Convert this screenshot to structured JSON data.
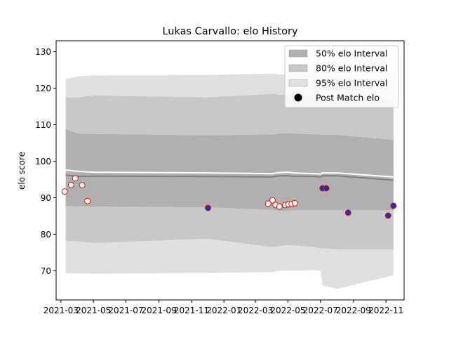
{
  "chart_data": {
    "type": "line",
    "title": "Lukas Carvallo: elo History",
    "xlabel": "",
    "ylabel": "elo score",
    "xlim": [
      "2021-02-20",
      "2022-12-05"
    ],
    "ylim": [
      62,
      133
    ],
    "x_ticks": [
      "2021-03",
      "2021-05",
      "2021-07",
      "2021-09",
      "2021-11",
      "2022-01",
      "2022-03",
      "2022-05",
      "2022-07",
      "2022-09",
      "2022-11"
    ],
    "y_ticks": [
      70,
      80,
      90,
      100,
      110,
      120,
      130
    ],
    "grid": false,
    "legend_position": "top-right",
    "legend": [
      {
        "label": "50% elo Interval",
        "kind": "band",
        "color": "#b0b0b0"
      },
      {
        "label": "80% elo Interval",
        "kind": "band",
        "color": "#c8c8c8"
      },
      {
        "label": "95% elo Interval",
        "kind": "band",
        "color": "#e0e0e0"
      },
      {
        "label": "Post Match elo",
        "kind": "point",
        "color": "#000000"
      }
    ],
    "intervals": {
      "x": [
        "2021-03-10",
        "2021-04-05",
        "2021-05-01",
        "2021-12-01",
        "2022-04-01",
        "2022-04-15",
        "2022-05-01",
        "2022-05-10",
        "2022-06-20",
        "2022-07-01",
        "2022-07-05",
        "2022-08-01",
        "2022-11-15"
      ],
      "upper95": [
        122.6,
        123.3,
        123.5,
        123.6,
        124.0,
        123.8,
        123.8,
        123.8,
        123.6,
        123.5,
        123.4,
        123.3,
        122.8
      ],
      "upper80": [
        117.5,
        117.5,
        118.0,
        117.5,
        118.4,
        118.2,
        118.2,
        118.2,
        118.0,
        117.6,
        117.5,
        117.4,
        116.6
      ],
      "upper50": [
        108.7,
        107.5,
        107.4,
        107.1,
        107.3,
        107.5,
        107.6,
        107.6,
        107.3,
        107.3,
        107.2,
        107.2,
        105.8
      ],
      "lower50": [
        87.8,
        87.6,
        87.6,
        87.4,
        86.7,
        86.4,
        86.5,
        86.6,
        86.6,
        86.6,
        86.6,
        86.6,
        86.6
      ],
      "lower80": [
        78.2,
        78.0,
        77.6,
        78.8,
        76.5,
        76.8,
        77.0,
        77.0,
        76.5,
        76.2,
        76.2,
        75.9,
        75.9
      ],
      "lower95": [
        69.3,
        69.3,
        69.2,
        69.4,
        69.6,
        70.0,
        70.0,
        70.0,
        70.2,
        70.0,
        66.0,
        65.0,
        68.8
      ]
    },
    "mean_line": {
      "x": [
        "2021-03-10",
        "2021-04-05",
        "2021-05-01",
        "2021-12-01",
        "2022-04-01",
        "2022-04-15",
        "2022-05-01",
        "2022-05-10",
        "2022-06-20",
        "2022-07-01",
        "2022-07-05",
        "2022-08-01",
        "2022-11-15"
      ],
      "y": [
        96.2,
        95.8,
        95.9,
        95.8,
        95.7,
        96.0,
        96.0,
        95.9,
        95.8,
        95.7,
        96.0,
        96.0,
        94.8
      ]
    },
    "median_line": {
      "x": [
        "2021-03-10",
        "2021-04-05",
        "2021-05-01",
        "2021-12-01",
        "2022-04-01",
        "2022-04-15",
        "2022-05-01",
        "2022-05-10",
        "2022-06-20",
        "2022-07-01",
        "2022-07-05",
        "2022-08-01",
        "2022-11-15"
      ],
      "y": [
        97.6,
        97.2,
        97.0,
        96.8,
        96.6,
        96.9,
        97.0,
        96.8,
        96.6,
        96.5,
        96.8,
        96.8,
        95.7
      ]
    },
    "series": [
      {
        "marker": "white-filled, red edge",
        "points": [
          {
            "x": "2021-03-08",
            "y": 91.7
          },
          {
            "x": "2021-03-20",
            "y": 93.5
          },
          {
            "x": "2021-03-28",
            "y": 95.3
          },
          {
            "x": "2021-04-10",
            "y": 93.4
          },
          {
            "x": "2021-04-20",
            "y": 89.1
          },
          {
            "x": "2022-03-25",
            "y": 88.4
          },
          {
            "x": "2022-04-02",
            "y": 89.3
          },
          {
            "x": "2022-04-08",
            "y": 88.0
          },
          {
            "x": "2022-04-15",
            "y": 87.6
          },
          {
            "x": "2022-04-26",
            "y": 88.0
          },
          {
            "x": "2022-05-02",
            "y": 88.2
          },
          {
            "x": "2022-05-08",
            "y": 88.3
          },
          {
            "x": "2022-05-14",
            "y": 88.5
          }
        ]
      },
      {
        "marker": "blue-filled, red edge",
        "points": [
          {
            "x": "2021-12-02",
            "y": 87.2
          },
          {
            "x": "2022-07-05",
            "y": 92.6
          },
          {
            "x": "2022-07-12",
            "y": 92.6
          },
          {
            "x": "2022-08-22",
            "y": 85.9
          },
          {
            "x": "2022-11-05",
            "y": 85.1
          },
          {
            "x": "2022-11-15",
            "y": 87.8
          }
        ]
      }
    ]
  },
  "colors": {
    "band50": "#b0b0b0",
    "band80": "#c8c8c8",
    "band95": "#e0e0e0",
    "mean_line": "#808080",
    "median_line": "#ffffff",
    "point_edge": "#e01010",
    "point_fill_open": "#ffffff",
    "point_fill_blue": "#2233aa"
  }
}
